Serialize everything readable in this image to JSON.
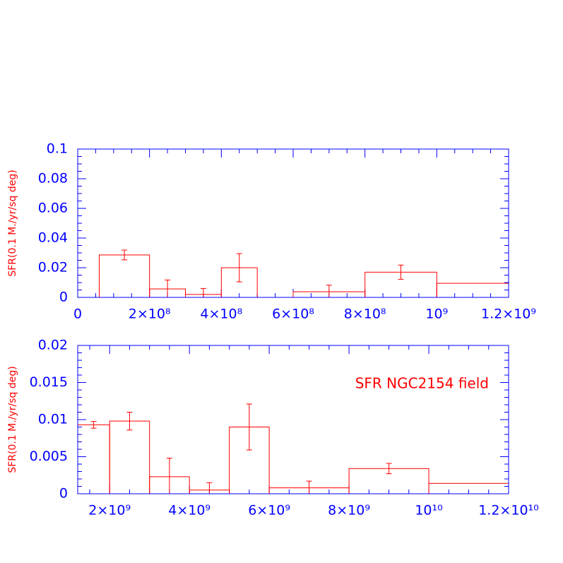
{
  "chart_data": [
    {
      "type": "histogram",
      "ylabel": "SFR(0.1 M./yr/sq deg)",
      "bins": [
        60000000,
        200000000,
        300000000,
        400000000,
        500000000,
        600000000,
        800000000,
        1000000000,
        1200000000
      ],
      "values": [
        0.0286,
        0.0057,
        0.002,
        0.02,
        0,
        0.0038,
        0.017,
        0.0095
      ],
      "errors": [
        0.0033,
        0.006,
        0.004,
        0.0095,
        null,
        0.0045,
        0.0048,
        null
      ],
      "color": "#ff0000",
      "axis_color": "#0000ff",
      "xlim": [
        0,
        1200000000
      ],
      "xticks": [
        0,
        {
          "value": 200000000,
          "label": "2×10⁸"
        },
        {
          "value": 400000000,
          "label": "4×10⁸"
        },
        {
          "value": 600000000,
          "label": "6×10⁸"
        },
        {
          "value": 800000000,
          "label": "8×10⁸"
        },
        {
          "value": 1000000000,
          "label": "10⁹"
        },
        {
          "value": 1200000000,
          "label": "1.2×10⁹"
        }
      ],
      "ylim": [
        0,
        0.1
      ],
      "yticks": [
        0,
        0.02,
        0.04,
        0.06,
        0.08,
        0.1
      ],
      "minor_divisions": {
        "x": 4,
        "y": 4
      }
    },
    {
      "type": "histogram",
      "ylabel": "SFR(0.1 M./yr/sq deg)",
      "annotation": "SFR NGC2154 field",
      "bins": [
        1200000000,
        2000000000,
        3000000000,
        4000000000,
        5000000000,
        6000000000,
        8000000000,
        10000000000,
        12000000000
      ],
      "values": [
        0.0093,
        0.0098,
        0.0023,
        0.0005,
        0.009,
        0.0008,
        0.0034,
        0.0014
      ],
      "errors": [
        0.00045,
        0.0012,
        0.0025,
        0.001,
        0.0031,
        0.0009,
        0.0007,
        null
      ],
      "color": "#ff0000",
      "axis_color": "#0000ff",
      "xlim": [
        1200000000,
        12000000000
      ],
      "xticks": [
        {
          "value": 2000000000,
          "label": "2×10⁹"
        },
        {
          "value": 4000000000,
          "label": "4×10⁹"
        },
        {
          "value": 6000000000,
          "label": "6×10⁹"
        },
        {
          "value": 8000000000,
          "label": "8×10⁹"
        },
        {
          "value": 10000000000,
          "label": "10¹⁰"
        },
        {
          "value": 12000000000,
          "label": "1.2×10¹⁰"
        }
      ],
      "ylim": [
        0,
        0.02
      ],
      "yticks": [
        0,
        0.005,
        0.01,
        0.015,
        0.02
      ],
      "minor_divisions": {
        "x": 4,
        "y": 5
      }
    }
  ]
}
